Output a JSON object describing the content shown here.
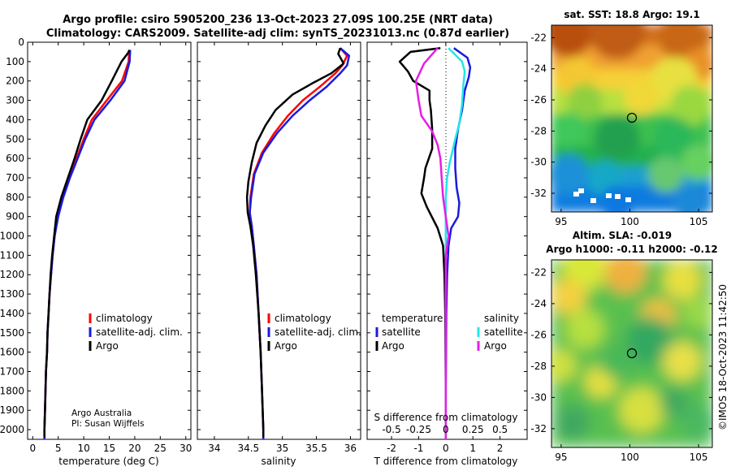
{
  "header": {
    "line1": "Argo profile: csiro 5905200_236 13-Oct-2023 27.09S 100.25E (NRT data)",
    "line2": "Climatology: CARS2009. Satellite-adj clim: synTS_20231013.nc (0.87d earlier)"
  },
  "colors": {
    "climatology": "#ff0000",
    "satellite_adj": "#1a1adf",
    "argo": "#000000",
    "sat_cyan": "#22e6e6",
    "sat_magenta": "#e61ee6"
  },
  "depth_axis": {
    "ticks": [
      0,
      100,
      200,
      300,
      400,
      500,
      600,
      700,
      800,
      900,
      1000,
      1100,
      1200,
      1300,
      1400,
      1500,
      1600,
      1700,
      1800,
      1900,
      2000
    ],
    "range": [
      0,
      2050
    ]
  },
  "chart_data": [
    {
      "type": "line",
      "id": "temperature",
      "xlabel": "temperature (deg C)",
      "xlim": [
        -1,
        31
      ],
      "xticks": [
        0,
        5,
        10,
        15,
        20,
        25,
        30
      ],
      "legend": [
        "climatology",
        "satellite-adj. clim.",
        "Argo"
      ],
      "credit": [
        "Argo Australia",
        "PI: Susan Wijffels"
      ],
      "series": [
        {
          "name": "climatology",
          "color": "#ff0000",
          "points": [
            [
              18.9,
              40
            ],
            [
              18.8,
              100
            ],
            [
              17.5,
              200
            ],
            [
              14.5,
              300
            ],
            [
              11.6,
              400
            ],
            [
              10.0,
              500
            ],
            [
              8.6,
              600
            ],
            [
              7.2,
              700
            ],
            [
              5.9,
              800
            ],
            [
              4.9,
              900
            ],
            [
              4.3,
              1000
            ],
            [
              3.9,
              1100
            ],
            [
              3.6,
              1200
            ],
            [
              3.3,
              1300
            ],
            [
              3.1,
              1400
            ],
            [
              2.9,
              1500
            ],
            [
              2.8,
              1600
            ],
            [
              2.6,
              1700
            ],
            [
              2.5,
              1800
            ],
            [
              2.4,
              1900
            ],
            [
              2.3,
              2000
            ],
            [
              2.3,
              2050
            ]
          ]
        },
        {
          "name": "satellite-adj. clim.",
          "color": "#1a1adf",
          "points": [
            [
              19.1,
              40
            ],
            [
              19.0,
              100
            ],
            [
              18.0,
              200
            ],
            [
              15.2,
              300
            ],
            [
              12.1,
              400
            ],
            [
              10.3,
              500
            ],
            [
              8.8,
              600
            ],
            [
              7.3,
              700
            ],
            [
              6.0,
              800
            ],
            [
              5.0,
              900
            ],
            [
              4.3,
              1000
            ],
            [
              3.9,
              1100
            ],
            [
              3.6,
              1200
            ],
            [
              3.3,
              1300
            ],
            [
              3.1,
              1400
            ],
            [
              2.9,
              1500
            ],
            [
              2.8,
              1600
            ],
            [
              2.6,
              1700
            ],
            [
              2.5,
              1800
            ],
            [
              2.4,
              1900
            ],
            [
              2.3,
              2000
            ],
            [
              2.3,
              2050
            ]
          ]
        },
        {
          "name": "Argo",
          "color": "#000000",
          "points": [
            [
              19.0,
              40
            ],
            [
              18.7,
              55
            ],
            [
              17.4,
              100
            ],
            [
              15.5,
              200
            ],
            [
              13.5,
              300
            ],
            [
              10.7,
              400
            ],
            [
              9.4,
              500
            ],
            [
              8.2,
              600
            ],
            [
              6.9,
              700
            ],
            [
              5.6,
              800
            ],
            [
              4.6,
              900
            ],
            [
              4.2,
              1000
            ],
            [
              3.8,
              1100
            ],
            [
              3.5,
              1200
            ],
            [
              3.3,
              1300
            ],
            [
              3.1,
              1400
            ],
            [
              2.9,
              1500
            ],
            [
              2.8,
              1600
            ],
            [
              2.6,
              1700
            ],
            [
              2.5,
              1800
            ],
            [
              2.4,
              1900
            ],
            [
              2.3,
              2000
            ],
            [
              2.3,
              2040
            ]
          ]
        }
      ]
    },
    {
      "type": "line",
      "id": "salinity",
      "xlabel": "salinity",
      "xlim": [
        33.75,
        36.15
      ],
      "xticks": [
        34,
        34.5,
        35,
        35.5,
        36
      ],
      "legend": [
        "climatology",
        "satellite-adj. clim.",
        "Argo"
      ],
      "series": [
        {
          "name": "climatology",
          "color": "#ff0000",
          "points": [
            [
              35.85,
              30
            ],
            [
              35.95,
              70
            ],
            [
              35.88,
              120
            ],
            [
              35.78,
              160
            ],
            [
              35.55,
              230
            ],
            [
              35.3,
              300
            ],
            [
              35.08,
              380
            ],
            [
              34.88,
              470
            ],
            [
              34.7,
              570
            ],
            [
              34.58,
              680
            ],
            [
              34.53,
              800
            ],
            [
              34.52,
              880
            ],
            [
              34.55,
              950
            ],
            [
              34.58,
              1050
            ],
            [
              34.62,
              1200
            ],
            [
              34.65,
              1400
            ],
            [
              34.68,
              1600
            ],
            [
              34.7,
              1800
            ],
            [
              34.72,
              2000
            ],
            [
              34.72,
              2050
            ]
          ]
        },
        {
          "name": "satellite-adj. clim.",
          "color": "#1a1adf",
          "points": [
            [
              35.85,
              30
            ],
            [
              35.98,
              70
            ],
            [
              35.95,
              120
            ],
            [
              35.85,
              160
            ],
            [
              35.65,
              230
            ],
            [
              35.4,
              300
            ],
            [
              35.15,
              380
            ],
            [
              34.92,
              470
            ],
            [
              34.72,
              570
            ],
            [
              34.59,
              680
            ],
            [
              34.54,
              800
            ],
            [
              34.52,
              880
            ],
            [
              34.55,
              950
            ],
            [
              34.58,
              1050
            ],
            [
              34.62,
              1200
            ],
            [
              34.65,
              1400
            ],
            [
              34.68,
              1600
            ],
            [
              34.7,
              1800
            ],
            [
              34.72,
              2000
            ],
            [
              34.72,
              2050
            ]
          ]
        },
        {
          "name": "Argo",
          "color": "#000000",
          "points": [
            [
              35.85,
              30
            ],
            [
              35.82,
              60
            ],
            [
              35.9,
              110
            ],
            [
              35.72,
              160
            ],
            [
              35.45,
              210
            ],
            [
              35.15,
              270
            ],
            [
              34.9,
              350
            ],
            [
              34.75,
              430
            ],
            [
              34.62,
              520
            ],
            [
              34.55,
              620
            ],
            [
              34.5,
              720
            ],
            [
              34.48,
              800
            ],
            [
              34.49,
              880
            ],
            [
              34.53,
              950
            ],
            [
              34.57,
              1050
            ],
            [
              34.61,
              1200
            ],
            [
              34.65,
              1400
            ],
            [
              34.68,
              1600
            ],
            [
              34.7,
              1800
            ],
            [
              34.72,
              2000
            ],
            [
              34.72,
              2040
            ]
          ]
        }
      ]
    },
    {
      "type": "line",
      "id": "difference",
      "xlabel": "T difference from climatology",
      "xlabel_top": "S difference from climatology",
      "xlim": [
        -2.9,
        3.0
      ],
      "xticks": [
        -2,
        -1,
        0,
        1,
        2
      ],
      "salinity_ticks": [
        "-0.5",
        "-0.25",
        "0",
        "0.25",
        "0.5"
      ],
      "salinity_tick_positions": [
        -2,
        -1,
        0,
        1,
        2
      ],
      "legend_left_title": "temperature",
      "legend_right_title": "salinity",
      "legend_left": [
        "satellite",
        "Argo"
      ],
      "legend_right": [
        "satellite",
        "Argo"
      ],
      "series": [
        {
          "name": "temperature satellite",
          "color": "#1a1adf",
          "points": [
            [
              0.3,
              30
            ],
            [
              0.8,
              80
            ],
            [
              0.9,
              130
            ],
            [
              0.85,
              180
            ],
            [
              0.7,
              250
            ],
            [
              0.6,
              350
            ],
            [
              0.45,
              450
            ],
            [
              0.35,
              550
            ],
            [
              0.35,
              650
            ],
            [
              0.4,
              750
            ],
            [
              0.5,
              830
            ],
            [
              0.45,
              900
            ],
            [
              0.2,
              960
            ],
            [
              0.1,
              1050
            ],
            [
              0.05,
              1200
            ],
            [
              0.02,
              1400
            ],
            [
              0.01,
              1600
            ],
            [
              0,
              1800
            ],
            [
              0,
              2000
            ],
            [
              0,
              2050
            ]
          ]
        },
        {
          "name": "temperature Argo",
          "color": "#000000",
          "points": [
            [
              -0.2,
              30
            ],
            [
              -1.3,
              50
            ],
            [
              -1.7,
              100
            ],
            [
              -1.4,
              150
            ],
            [
              -1.2,
              200
            ],
            [
              -0.6,
              250
            ],
            [
              -0.6,
              300
            ],
            [
              -0.55,
              350
            ],
            [
              -0.5,
              450
            ],
            [
              -0.5,
              550
            ],
            [
              -0.75,
              650
            ],
            [
              -0.8,
              700
            ],
            [
              -0.9,
              780
            ],
            [
              -0.7,
              850
            ],
            [
              -0.3,
              960
            ],
            [
              -0.1,
              1050
            ],
            [
              -0.05,
              1200
            ],
            [
              -0.02,
              1400
            ],
            [
              -0.01,
              1600
            ],
            [
              0,
              1800
            ],
            [
              0,
              2000
            ],
            [
              0,
              2050
            ]
          ]
        },
        {
          "name": "salinity satellite",
          "color": "#22e6e6",
          "points": [
            [
              0.1,
              30
            ],
            [
              0.6,
              100
            ],
            [
              0.7,
              150
            ],
            [
              0.65,
              220
            ],
            [
              0.6,
              320
            ],
            [
              0.5,
              420
            ],
            [
              0.35,
              500
            ],
            [
              0.25,
              560
            ],
            [
              0.15,
              620
            ],
            [
              0.05,
              700
            ],
            [
              0,
              800
            ],
            [
              0,
              900
            ],
            [
              0,
              1000
            ],
            [
              0,
              1200
            ],
            [
              0,
              1400
            ],
            [
              0,
              1600
            ],
            [
              0,
              1800
            ],
            [
              0,
              2000
            ],
            [
              0,
              2050
            ]
          ]
        },
        {
          "name": "salinity Argo",
          "color": "#e61ee6",
          "points": [
            [
              -0.3,
              30
            ],
            [
              -0.8,
              110
            ],
            [
              -1.1,
              200
            ],
            [
              -1.0,
              300
            ],
            [
              -0.9,
              380
            ],
            [
              -0.5,
              460
            ],
            [
              -0.3,
              530
            ],
            [
              -0.2,
              600
            ],
            [
              -0.15,
              700
            ],
            [
              -0.1,
              800
            ],
            [
              0,
              900
            ],
            [
              0.1,
              1000
            ],
            [
              0,
              1100
            ],
            [
              0,
              1200
            ],
            [
              0,
              1400
            ],
            [
              0,
              1600
            ],
            [
              0,
              1800
            ],
            [
              0,
              2000
            ],
            [
              0,
              2050
            ]
          ]
        }
      ]
    },
    {
      "type": "heatmap",
      "id": "sst_map",
      "title": "sat. SST: 18.8 Argo: 19.1",
      "xticks": [
        95,
        100,
        105
      ],
      "yticks": [
        -22,
        -24,
        -26,
        -28,
        -30,
        -32
      ],
      "xlim": [
        94.3,
        106.0
      ],
      "ylim": [
        -33.2,
        -21.2
      ],
      "marker": [
        100.25,
        -27.09
      ]
    },
    {
      "type": "heatmap",
      "id": "sla_map",
      "title1": "Altim. SLA: -0.019",
      "title2": "Argo h1000: -0.11 h2000: -0.12",
      "xticks": [
        95,
        100,
        105
      ],
      "yticks": [
        -22,
        -24,
        -26,
        -28,
        -30,
        -32
      ],
      "xlim": [
        94.3,
        106.0
      ],
      "ylim": [
        -33.2,
        -21.2
      ],
      "marker": [
        100.25,
        -27.09
      ]
    }
  ],
  "timestamp": "©IMOS 18-Oct-2023 11:42:50"
}
